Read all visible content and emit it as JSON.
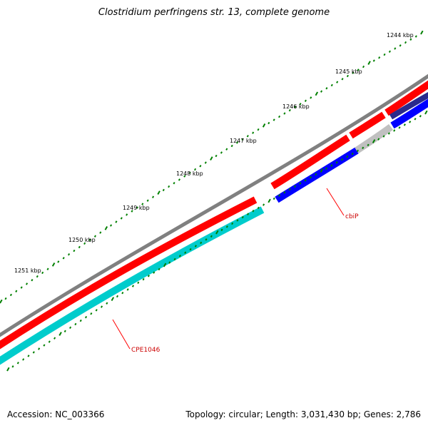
{
  "title": "Clostridium perfringens str. 13, complete genome",
  "accession": "Accession: NC_003366",
  "summary": "Topology: circular; Length: 3,031,430 bp; Genes: 2,786",
  "tick_labels": [
    "1244 kbp",
    "1245 kbp",
    "1246 kbp",
    "1247 kbp",
    "1248 kbp",
    "1249 kbp",
    "1250 kbp",
    "1251 kbp"
  ],
  "gene_labels": [
    "cbiP",
    "CPE1046"
  ],
  "colors": {
    "backbone": "#808080",
    "forward_gene": "#ff0000",
    "reverse_gene": "#0000ff",
    "reverse_gene_dark": "#2a2a8c",
    "rna_or_other": "#00cccc",
    "pseudo_gray": "#c0c0c0",
    "tick": "#008000",
    "label_line": "#ff0000"
  }
}
